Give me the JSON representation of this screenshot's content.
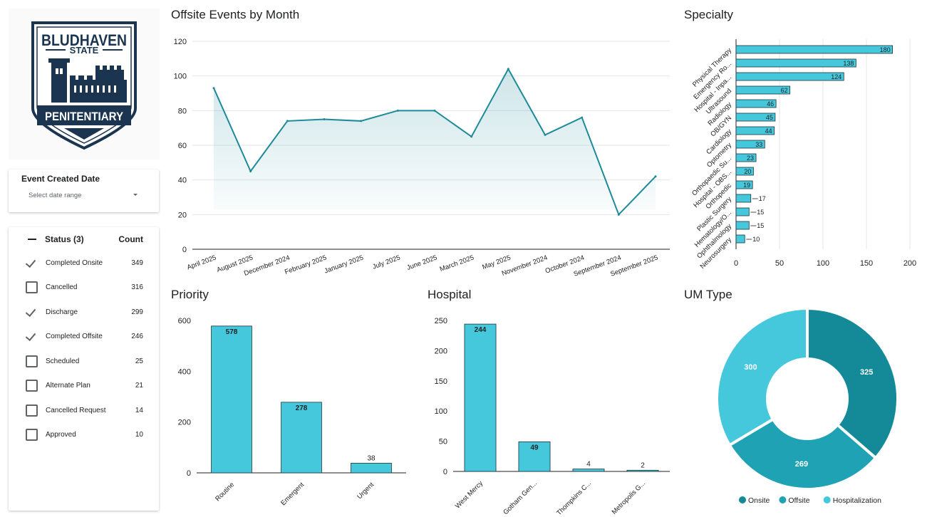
{
  "logo": {
    "line1": "BLUDHAVEN",
    "line2": "STATE",
    "line3": "PENITENTIARY"
  },
  "colors": {
    "teal_dark": "#148a99",
    "teal_mid": "#1fa2b4",
    "teal_light": "#45c8dc",
    "line": "#1d8a9a",
    "bar": "#45c8dc"
  },
  "date_filter": {
    "title": "Event Created Date",
    "placeholder": "Select date range"
  },
  "status_filter": {
    "header": "Status (3)",
    "count_header": "Count",
    "items": [
      {
        "label": "Completed Onsite",
        "count": "349",
        "checked": true
      },
      {
        "label": "Cancelled",
        "count": "316",
        "checked": false
      },
      {
        "label": "Discharge",
        "count": "299",
        "checked": true
      },
      {
        "label": "Completed Offsite",
        "count": "246",
        "checked": true
      },
      {
        "label": "Scheduled",
        "count": "25",
        "checked": false
      },
      {
        "label": "Alternate Plan",
        "count": "21",
        "checked": false
      },
      {
        "label": "Cancelled Request",
        "count": "14",
        "checked": false
      },
      {
        "label": "Approved",
        "count": "10",
        "checked": false
      }
    ]
  },
  "chart_data": [
    {
      "id": "monthly",
      "type": "area",
      "title": "Offsite Events by Month",
      "categories": [
        "April 2025",
        "August 2025",
        "December 2024",
        "February 2025",
        "January 2025",
        "July 2025",
        "June 2025",
        "March 2025",
        "May 2025",
        "November 2024",
        "October 2024",
        "September 2024",
        "September 2025"
      ],
      "values": [
        93,
        45,
        74,
        75,
        74,
        80,
        80,
        65,
        104,
        66,
        76,
        20,
        42
      ],
      "ylim": [
        0,
        120
      ],
      "yticks": [
        0,
        20,
        40,
        60,
        80,
        100,
        120
      ],
      "grid": true
    },
    {
      "id": "specialty",
      "type": "bar",
      "orientation": "horizontal",
      "title": "Specialty",
      "categories": [
        "Physical Therapy",
        "Emergency Ro...",
        "Hospital - Inpa...",
        "Ultrasound",
        "Radiology",
        "OB/GYN",
        "Cardiology",
        "Optometry",
        "Orthopaedic Su...",
        "Hospital - OBS...",
        "Orthopedic",
        "Plastic Surgery",
        "Hematology/O...",
        "Ophthalmology",
        "Neurosurgery"
      ],
      "values": [
        180,
        138,
        124,
        62,
        46,
        45,
        44,
        33,
        23,
        20,
        19,
        17,
        15,
        15,
        10
      ],
      "xlim": [
        0,
        200
      ],
      "xticks": [
        0,
        50,
        100,
        150,
        200
      ],
      "grid": true
    },
    {
      "id": "priority",
      "type": "bar",
      "title": "Priority",
      "categories": [
        "Routine",
        "Emergent",
        "Urgent"
      ],
      "values": [
        578,
        278,
        38
      ],
      "ylim": [
        0,
        600
      ],
      "yticks": [
        0,
        200,
        400,
        600
      ],
      "grid": false
    },
    {
      "id": "hospital",
      "type": "bar",
      "title": "Hospital",
      "categories": [
        "West Mercy",
        "Gotham Gen...",
        "Thompkins C...",
        "Metropolis G..."
      ],
      "values": [
        244,
        49,
        4,
        2
      ],
      "ylim": [
        0,
        250
      ],
      "yticks": [
        0,
        50,
        100,
        150,
        200,
        250
      ],
      "grid": false
    },
    {
      "id": "umtype",
      "type": "pie",
      "title": "UM Type",
      "donut": true,
      "labels": [
        "Onsite",
        "Offsite",
        "Hospitalization"
      ],
      "values": [
        325,
        269,
        300
      ],
      "legend": "bottom"
    }
  ]
}
